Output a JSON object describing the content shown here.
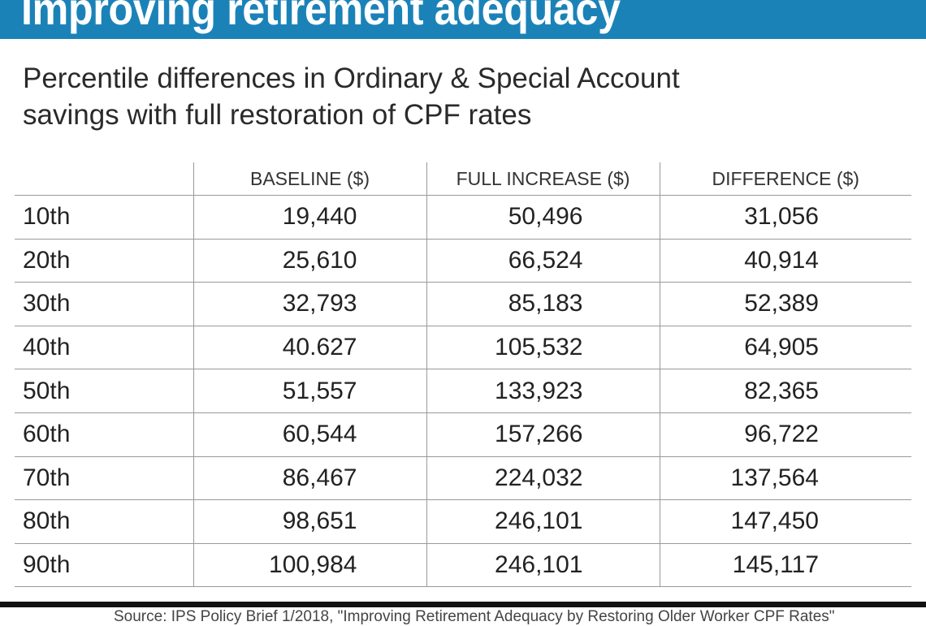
{
  "title": "Improving retirement adequacy",
  "subtitle_line1": "Percentile differences in Ordinary & Special Account",
  "subtitle_line2": "savings with full restoration of CPF rates",
  "colors": {
    "title_bar": "#1b82b8",
    "rule": "#111111"
  },
  "chart_data": {
    "type": "table",
    "columns": [
      "",
      "BASELINE ($)",
      "FULL INCREASE ($)",
      "DIFFERENCE ($)"
    ],
    "rows": [
      [
        "10th",
        "19,440",
        "50,496",
        "31,056"
      ],
      [
        "20th",
        "25,610",
        "66,524",
        "40,914"
      ],
      [
        "30th",
        "32,793",
        "85,183",
        "52,389"
      ],
      [
        "40th",
        "40.627",
        "105,532",
        "64,905"
      ],
      [
        "50th",
        "51,557",
        "133,923",
        "82,365"
      ],
      [
        "60th",
        "60,544",
        "157,266",
        "96,722"
      ],
      [
        "70th",
        "86,467",
        "224,032",
        "137,564"
      ],
      [
        "80th",
        "98,651",
        "246,101",
        "147,450"
      ],
      [
        "90th",
        "100,984",
        "246,101",
        "145,117"
      ]
    ]
  },
  "source": "Source: IPS Policy Brief 1/2018, \"Improving Retirement Adequacy by Restoring Older Worker CPF Rates\""
}
